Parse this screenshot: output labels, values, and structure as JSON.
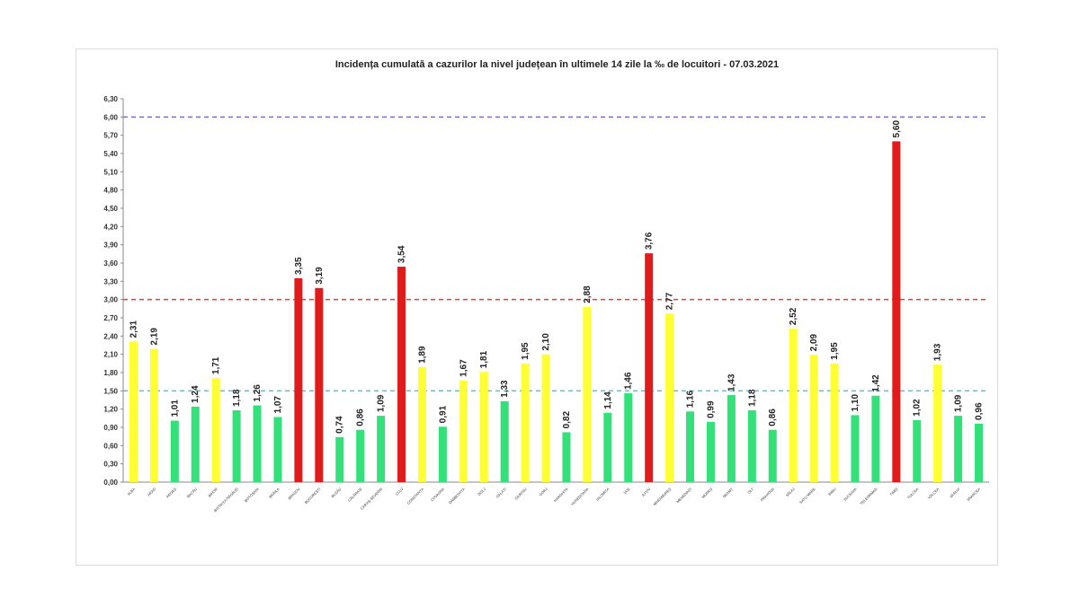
{
  "chart_data": {
    "type": "bar",
    "title": "Incidența cumulată a cazurilor la nivel județean în ultimele 14 zile la ‰ de locuitori - 07.03.2021",
    "xlabel": "",
    "ylabel": "",
    "ylim": [
      0,
      6.3
    ],
    "yticks": [
      "0,00",
      "0,30",
      "0,60",
      "0,90",
      "1,20",
      "1,50",
      "1,80",
      "2,10",
      "2,40",
      "2,70",
      "3,00",
      "3,30",
      "3,60",
      "3,90",
      "4,20",
      "4,50",
      "4,80",
      "5,10",
      "5,40",
      "5,70",
      "6,00",
      "6,30"
    ],
    "grid": false,
    "legend": "none",
    "categories": [
      "ALBA",
      "ARAD",
      "ARGEȘ",
      "BACĂU",
      "BIHOR",
      "BISTRIȚA-NĂSĂUD",
      "BOTOȘANI",
      "BRĂILA",
      "BRAȘOV",
      "BUCUREȘTI",
      "BUZĂU",
      "CĂLĂRAȘI",
      "CARAȘ-SEVERIN",
      "CLUJ",
      "CONSTANȚA",
      "COVASNA",
      "DÂMBOVIȚA",
      "DOLJ",
      "GALAȚI",
      "GIURGIU",
      "GORJ",
      "HARGHITA",
      "HUNEDOARA",
      "IALOMIȚA",
      "IAȘI",
      "ILFOV",
      "MARAMUREȘ",
      "MEHEDINȚI",
      "MUREȘ",
      "NEAMȚ",
      "OLT",
      "PRAHOVA",
      "SĂLAJ",
      "SATU MARE",
      "SIBIU",
      "SUCEAVA",
      "TELEORMAN",
      "TIMIȘ",
      "TULCEA",
      "VÂLCEA",
      "VASLUI",
      "VRANCEA"
    ],
    "values": [
      2.31,
      2.19,
      1.01,
      1.24,
      1.71,
      1.18,
      1.26,
      1.07,
      3.35,
      3.19,
      0.74,
      0.86,
      1.09,
      3.54,
      1.89,
      0.91,
      1.67,
      1.81,
      1.33,
      1.95,
      2.1,
      0.82,
      2.88,
      1.14,
      1.46,
      3.76,
      2.77,
      1.16,
      0.99,
      1.43,
      1.18,
      0.86,
      2.52,
      2.09,
      1.95,
      1.1,
      1.42,
      5.6,
      1.02,
      1.93,
      1.09,
      0.96
    ],
    "value_labels": [
      "2,31",
      "2,19",
      "1,01",
      "1,24",
      "1,71",
      "1,18",
      "1,26",
      "1,07",
      "3,35",
      "3,19",
      "0,74",
      "0,86",
      "1,09",
      "3,54",
      "1,89",
      "0,91",
      "1,67",
      "1,81",
      "1,33",
      "1,95",
      "2,10",
      "0,82",
      "2,88",
      "1,14",
      "1,46",
      "3,76",
      "2,77",
      "1,16",
      "0,99",
      "1,43",
      "1,18",
      "0,86",
      "2,52",
      "2,09",
      "1,95",
      "1,10",
      "1,42",
      "5,60",
      "1,02",
      "1,93",
      "1,09",
      "0,96"
    ],
    "thresholds": [
      {
        "value": 1.5,
        "color": "#4fc3d9"
      },
      {
        "value": 3.0,
        "color": "#e0403a"
      },
      {
        "value": 6.0,
        "color": "#7b6fc9"
      }
    ],
    "colors": {
      "green": "#33e07a",
      "yellow": "#ffff33",
      "red": "#e01b1b"
    }
  }
}
